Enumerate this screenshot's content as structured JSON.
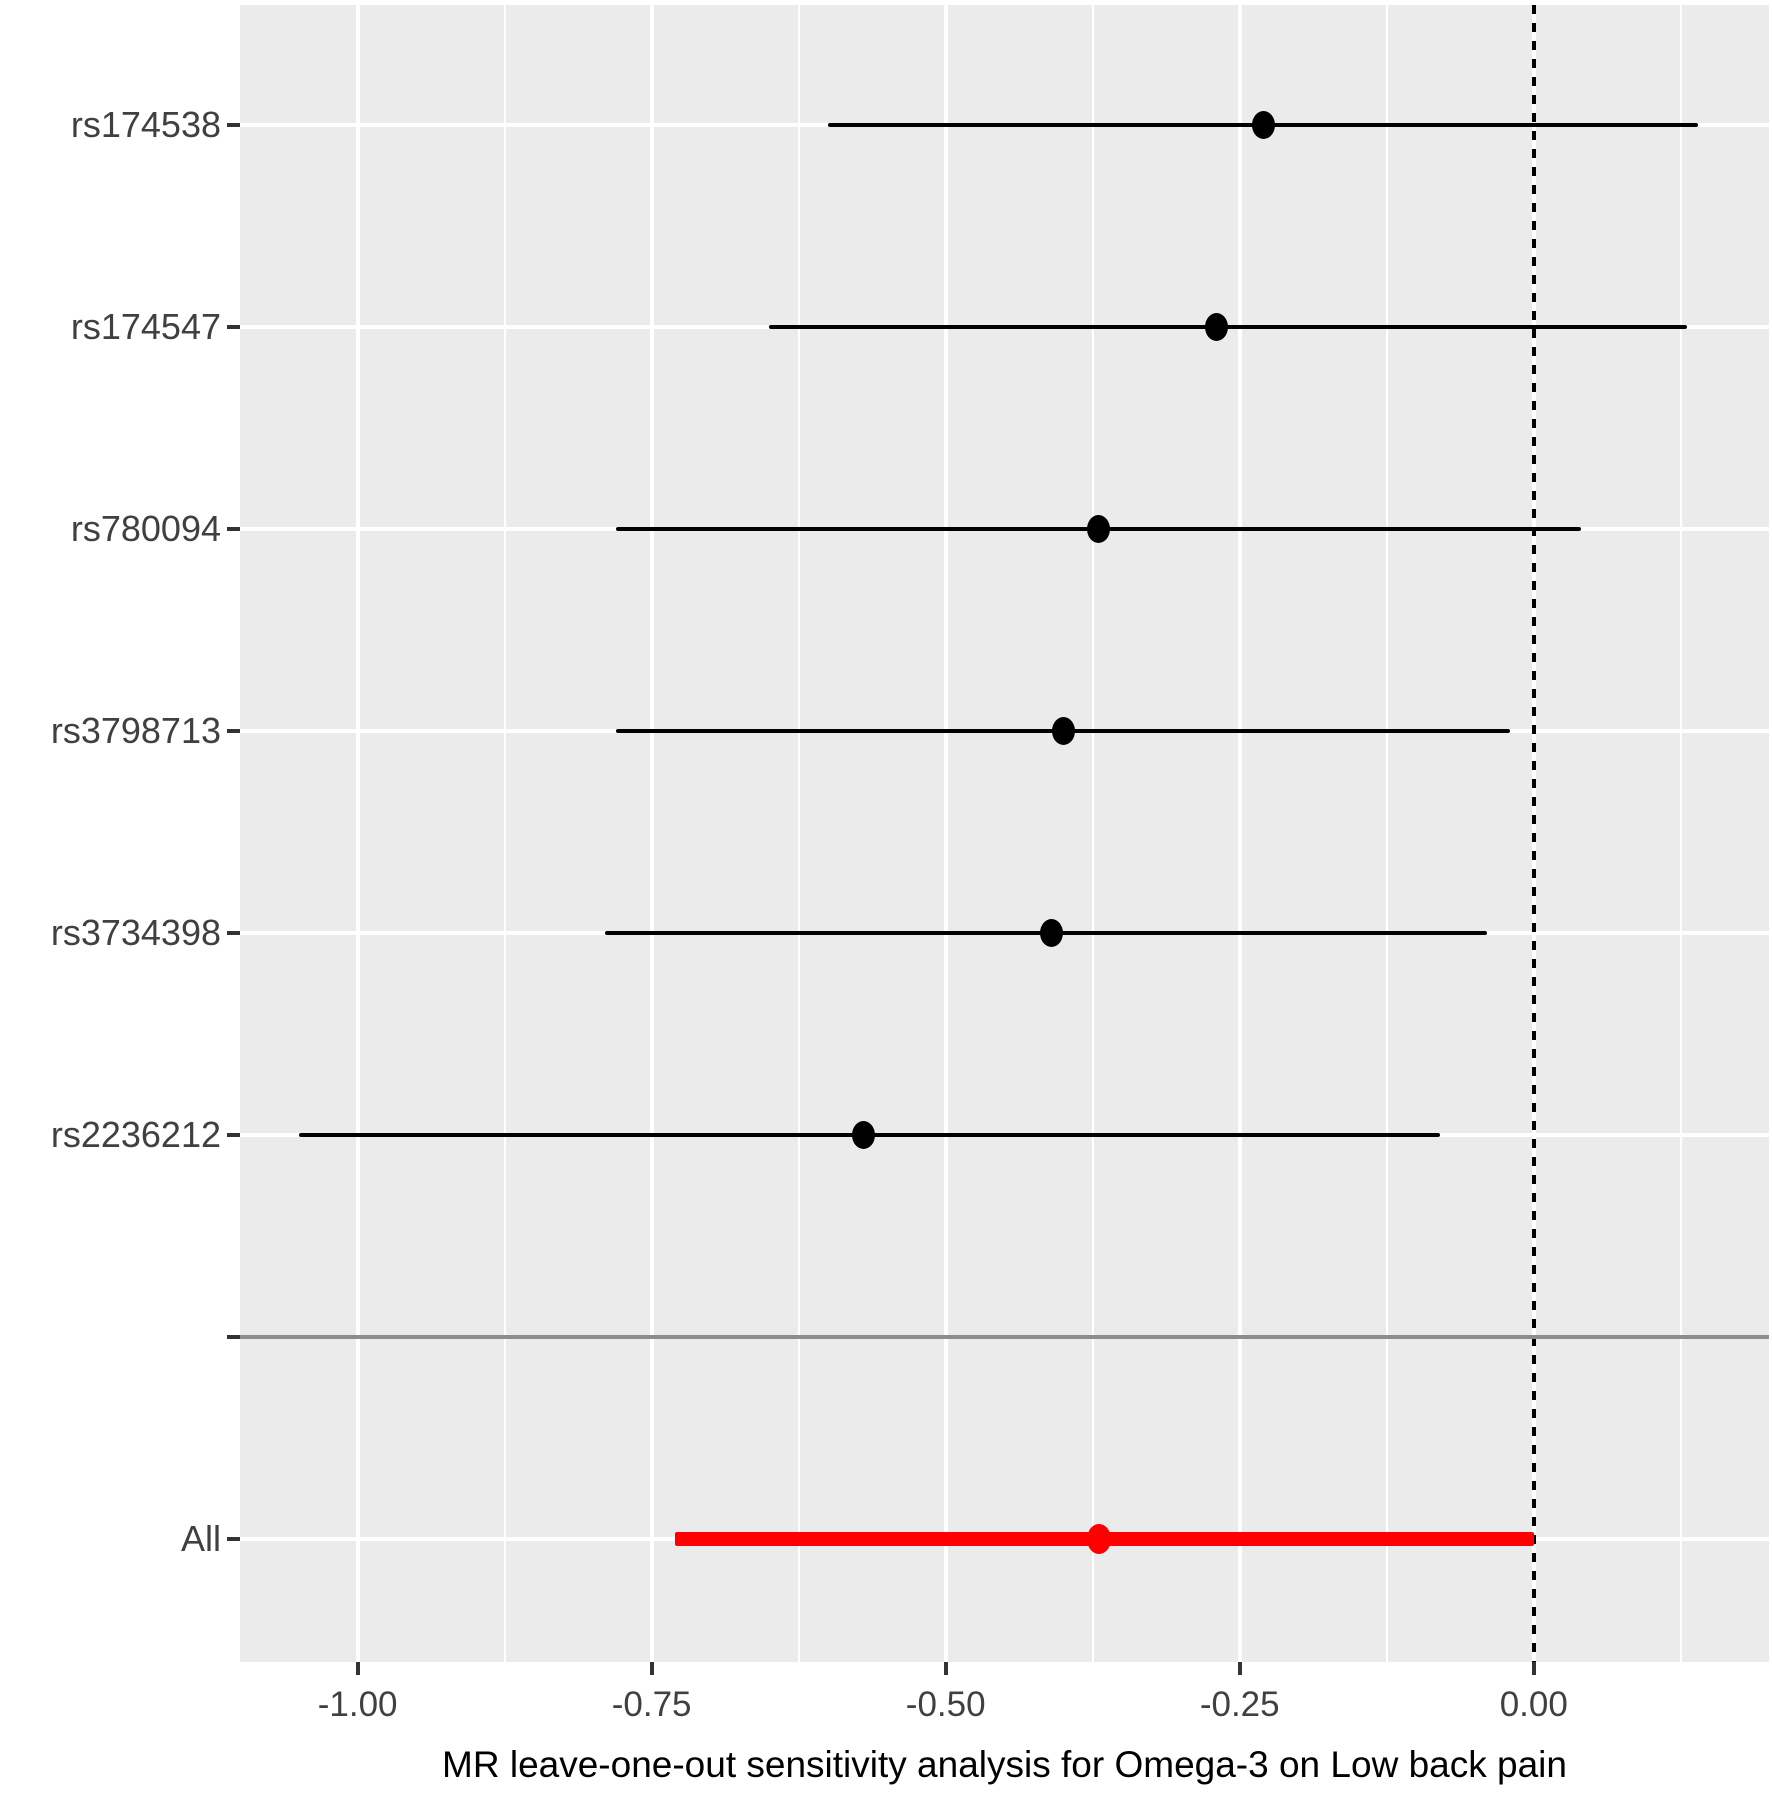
{
  "chart_data": {
    "type": "scatter",
    "subtype": "forest-plot",
    "title": "",
    "xlabel": "MR leave-one-out sensitivity analysis for Omega-3 on Low back pain",
    "ylabel": "",
    "xlim": [
      -1.1,
      0.2
    ],
    "x_ticks": [
      {
        "value": -1.0,
        "label": "-1.00"
      },
      {
        "value": -0.75,
        "label": "-0.75"
      },
      {
        "value": -0.5,
        "label": "-0.50"
      },
      {
        "value": -0.25,
        "label": "-0.25"
      },
      {
        "value": 0.0,
        "label": "0.00"
      }
    ],
    "x_minor_ticks": [
      -0.875,
      -0.625,
      -0.375,
      -0.125,
      0.125
    ],
    "reference_line_x": 0.0,
    "grid": true,
    "legend_position": "none",
    "rows": [
      {
        "label": "rs174538",
        "kind": "snp",
        "estimate": -0.23,
        "ci_low": -0.6,
        "ci_high": 0.14
      },
      {
        "label": "rs174547",
        "kind": "snp",
        "estimate": -0.27,
        "ci_low": -0.65,
        "ci_high": 0.13
      },
      {
        "label": "rs780094",
        "kind": "snp",
        "estimate": -0.37,
        "ci_low": -0.78,
        "ci_high": 0.04
      },
      {
        "label": "rs3798713",
        "kind": "snp",
        "estimate": -0.4,
        "ci_low": -0.78,
        "ci_high": -0.02
      },
      {
        "label": "rs3734398",
        "kind": "snp",
        "estimate": -0.41,
        "ci_low": -0.79,
        "ci_high": -0.04
      },
      {
        "label": "rs2236212",
        "kind": "snp",
        "estimate": -0.57,
        "ci_low": -1.05,
        "ci_high": -0.08
      },
      {
        "label": "",
        "kind": "separator"
      },
      {
        "label": "All",
        "kind": "all",
        "estimate": -0.37,
        "ci_low": -0.73,
        "ci_high": 0.0
      }
    ],
    "colors": {
      "snp_series": "#000000",
      "all_series": "#FF0000",
      "reference_line": "#000000",
      "separator_line": "#8C8C8C",
      "panel_background": "#EBEBEB",
      "gridlines": "#FFFFFF",
      "axis_text": "#404040",
      "axis_title": "#000000"
    }
  }
}
